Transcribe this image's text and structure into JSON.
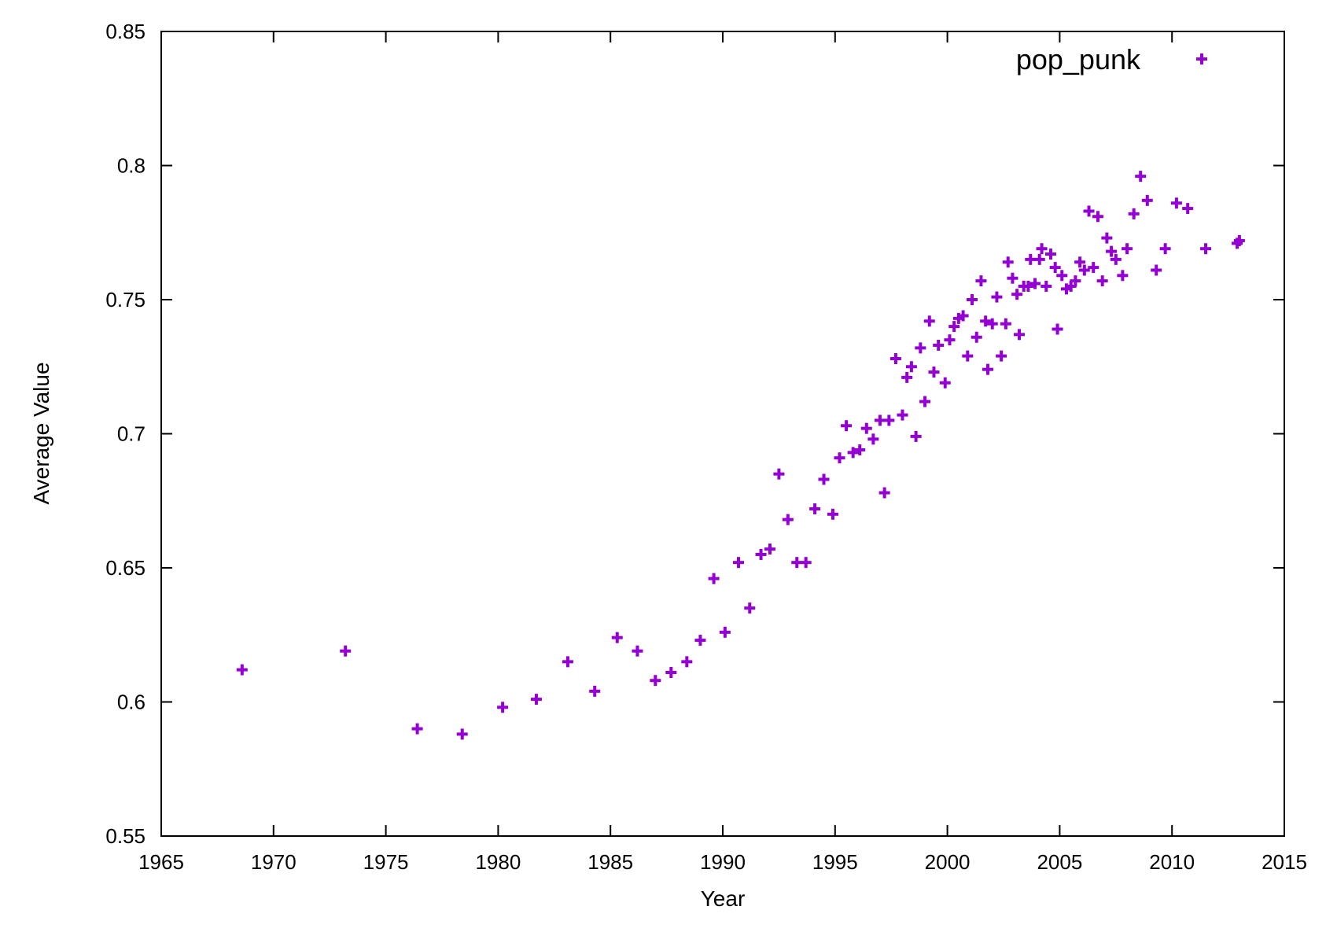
{
  "chart_data": {
    "type": "scatter",
    "title": "",
    "xlabel": "Year",
    "ylabel": "Average Value",
    "xlim": [
      1965,
      2015
    ],
    "ylim": [
      0.55,
      0.85
    ],
    "xticks": [
      "1965",
      "1970",
      "1975",
      "1980",
      "1985",
      "1990",
      "1995",
      "2000",
      "2005",
      "2010",
      "2015"
    ],
    "yticks": [
      "0.55",
      "0.6",
      "0.65",
      "0.7",
      "0.75",
      "0.8",
      "0.85"
    ],
    "grid": false,
    "legend_position": "top-right",
    "series": [
      {
        "name": "pop_punk",
        "color": "#9400d3",
        "marker": "plus",
        "points": [
          [
            1968.6,
            0.612
          ],
          [
            1973.2,
            0.619
          ],
          [
            1976.4,
            0.59
          ],
          [
            1978.4,
            0.588
          ],
          [
            1980.2,
            0.598
          ],
          [
            1981.7,
            0.601
          ],
          [
            1983.1,
            0.615
          ],
          [
            1984.3,
            0.604
          ],
          [
            1985.3,
            0.624
          ],
          [
            1986.2,
            0.619
          ],
          [
            1987.0,
            0.608
          ],
          [
            1987.7,
            0.611
          ],
          [
            1988.4,
            0.615
          ],
          [
            1989.0,
            0.623
          ],
          [
            1989.6,
            0.646
          ],
          [
            1990.1,
            0.626
          ],
          [
            1990.7,
            0.652
          ],
          [
            1991.2,
            0.635
          ],
          [
            1991.7,
            0.655
          ],
          [
            1992.1,
            0.657
          ],
          [
            1992.5,
            0.685
          ],
          [
            1992.9,
            0.668
          ],
          [
            1993.3,
            0.652
          ],
          [
            1993.7,
            0.652
          ],
          [
            1994.1,
            0.672
          ],
          [
            1994.5,
            0.683
          ],
          [
            1994.9,
            0.67
          ],
          [
            1995.2,
            0.691
          ],
          [
            1995.5,
            0.703
          ],
          [
            1995.8,
            0.693
          ],
          [
            1996.1,
            0.694
          ],
          [
            1996.4,
            0.702
          ],
          [
            1996.7,
            0.698
          ],
          [
            1997.0,
            0.705
          ],
          [
            1997.2,
            0.678
          ],
          [
            1997.4,
            0.705
          ],
          [
            1997.7,
            0.728
          ],
          [
            1998.0,
            0.707
          ],
          [
            1998.2,
            0.721
          ],
          [
            1998.4,
            0.725
          ],
          [
            1998.6,
            0.699
          ],
          [
            1998.8,
            0.732
          ],
          [
            1999.0,
            0.712
          ],
          [
            1999.2,
            0.742
          ],
          [
            1999.4,
            0.723
          ],
          [
            1999.6,
            0.733
          ],
          [
            1999.9,
            0.719
          ],
          [
            2000.1,
            0.735
          ],
          [
            2000.3,
            0.74
          ],
          [
            2000.5,
            0.743
          ],
          [
            2000.7,
            0.744
          ],
          [
            2000.9,
            0.729
          ],
          [
            2001.1,
            0.75
          ],
          [
            2001.3,
            0.736
          ],
          [
            2001.5,
            0.757
          ],
          [
            2001.7,
            0.742
          ],
          [
            2001.8,
            0.724
          ],
          [
            2002.0,
            0.741
          ],
          [
            2002.2,
            0.751
          ],
          [
            2002.4,
            0.729
          ],
          [
            2002.6,
            0.741
          ],
          [
            2002.7,
            0.764
          ],
          [
            2002.9,
            0.758
          ],
          [
            2003.1,
            0.752
          ],
          [
            2003.2,
            0.737
          ],
          [
            2003.4,
            0.755
          ],
          [
            2003.6,
            0.755
          ],
          [
            2003.7,
            0.765
          ],
          [
            2003.9,
            0.756
          ],
          [
            2004.1,
            0.765
          ],
          [
            2004.2,
            0.769
          ],
          [
            2004.4,
            0.755
          ],
          [
            2004.6,
            0.767
          ],
          [
            2004.8,
            0.762
          ],
          [
            2004.9,
            0.739
          ],
          [
            2005.1,
            0.759
          ],
          [
            2005.3,
            0.754
          ],
          [
            2005.5,
            0.755
          ],
          [
            2005.7,
            0.757
          ],
          [
            2005.9,
            0.764
          ],
          [
            2006.1,
            0.761
          ],
          [
            2006.3,
            0.783
          ],
          [
            2006.5,
            0.762
          ],
          [
            2006.7,
            0.781
          ],
          [
            2006.9,
            0.757
          ],
          [
            2007.1,
            0.773
          ],
          [
            2007.3,
            0.768
          ],
          [
            2007.5,
            0.765
          ],
          [
            2007.8,
            0.759
          ],
          [
            2008.0,
            0.769
          ],
          [
            2008.3,
            0.782
          ],
          [
            2008.6,
            0.796
          ],
          [
            2008.9,
            0.787
          ],
          [
            2009.3,
            0.761
          ],
          [
            2009.7,
            0.769
          ],
          [
            2010.2,
            0.786
          ],
          [
            2010.7,
            0.784
          ],
          [
            2011.5,
            0.769
          ],
          [
            2012.9,
            0.771
          ],
          [
            2013.0,
            0.772
          ]
        ]
      }
    ]
  }
}
